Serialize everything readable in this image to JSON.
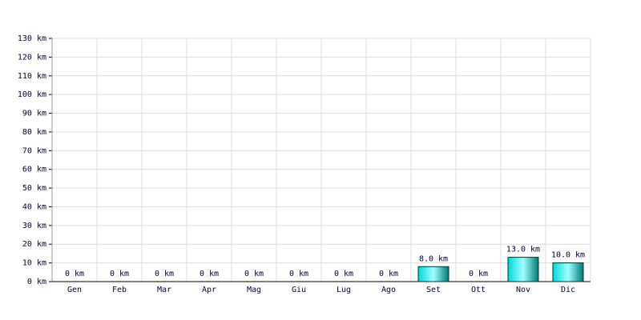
{
  "chart_data": {
    "type": "bar",
    "categories": [
      "Gen",
      "Feb",
      "Mar",
      "Apr",
      "Mag",
      "Giu",
      "Lug",
      "Ago",
      "Set",
      "Ott",
      "Nov",
      "Dic"
    ],
    "values": [
      0,
      0,
      0,
      0,
      0,
      0,
      0,
      0,
      8,
      0,
      13,
      10
    ],
    "value_labels": [
      "0 km",
      "0 km",
      "0 km",
      "0 km",
      "0 km",
      "0 km",
      "0 km",
      "0 km",
      "8.0 km",
      "0 km",
      "13.0 km",
      "10.0 km"
    ],
    "color": "#00d8d8",
    "ylim": [
      0,
      130
    ],
    "yticks": [
      {
        "value": 0,
        "label": "0 km"
      },
      {
        "value": 10,
        "label": "10 km"
      },
      {
        "value": 20,
        "label": "20 km"
      },
      {
        "value": 30,
        "label": "30 km"
      },
      {
        "value": 40,
        "label": "40 km"
      },
      {
        "value": 50,
        "label": "50 km"
      },
      {
        "value": 60,
        "label": "60 km"
      },
      {
        "value": 70,
        "label": "70 km"
      },
      {
        "value": 80,
        "label": "80 km"
      },
      {
        "value": 90,
        "label": "90 km"
      },
      {
        "value": 100,
        "label": "100 km"
      },
      {
        "value": 110,
        "label": "110 km"
      },
      {
        "value": 120,
        "label": "120 km"
      },
      {
        "value": 130,
        "label": "130 km"
      }
    ],
    "grid": true
  }
}
